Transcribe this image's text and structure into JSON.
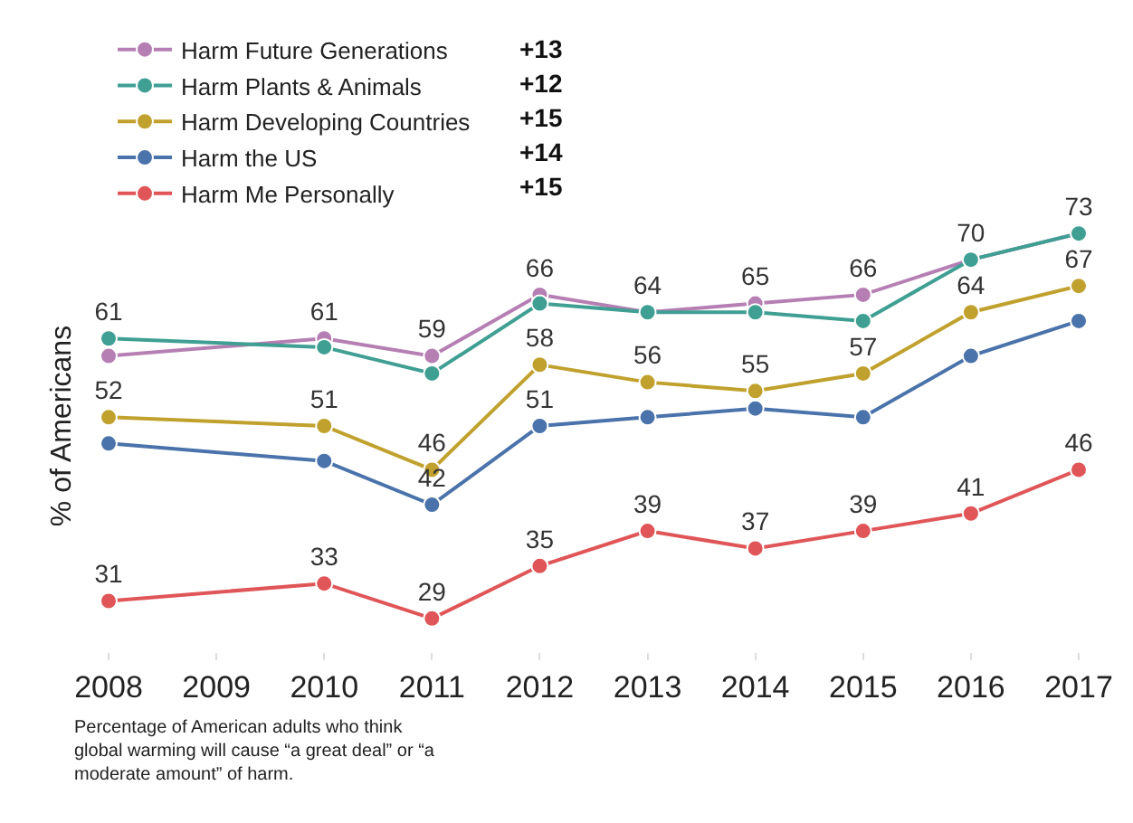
{
  "chart_data": {
    "type": "line",
    "ylabel": "% of Americans",
    "x": [
      2008,
      2010,
      2011,
      2012,
      2013,
      2014,
      2015,
      2016,
      2017
    ],
    "xlim": [
      2008,
      2017
    ],
    "xticks": [
      2008,
      2009,
      2010,
      2011,
      2012,
      2013,
      2014,
      2015,
      2016,
      2017
    ],
    "tick_labels": "x",
    "legend": "top left",
    "marker": "circle",
    "line_style": "solid",
    "series": [
      {
        "name": "Harm Future Generations",
        "color": "#b67fb4",
        "values": [
          59,
          61,
          59,
          66,
          64,
          65,
          66,
          70,
          73
        ],
        "value_labels": [
          null,
          "61",
          "59",
          "66",
          "64",
          "65",
          "66",
          "70",
          "73"
        ]
      },
      {
        "name": "Harm Plants & Animals",
        "color": "#3f9f93",
        "values": [
          61,
          60,
          57,
          65,
          64,
          64,
          63,
          70,
          73
        ],
        "value_labels": [
          "61",
          null,
          null,
          null,
          null,
          null,
          null,
          null,
          null
        ]
      },
      {
        "name": "Harm Developing Countries",
        "color": "#c1a12d",
        "values": [
          52,
          51,
          46,
          58,
          56,
          55,
          57,
          64,
          67
        ],
        "value_labels": [
          "52",
          "51",
          "46",
          "58",
          "56",
          "55",
          "57",
          "64",
          "67"
        ]
      },
      {
        "name": "Harm the US",
        "color": "#4a73ab",
        "values": [
          49,
          47,
          42,
          51,
          52,
          53,
          52,
          59,
          63
        ],
        "value_labels": [
          null,
          null,
          "42",
          "51",
          null,
          null,
          null,
          null,
          null
        ]
      },
      {
        "name": "Harm Me Personally",
        "color": "#e05558",
        "values": [
          31,
          33,
          29,
          35,
          39,
          37,
          39,
          41,
          46
        ],
        "value_labels": [
          "31",
          "33",
          "29",
          "35",
          "39",
          "37",
          "39",
          "41",
          "46"
        ]
      }
    ],
    "annotations": [
      "Percentage of American adults who think\nglobal warming will cause “a great deal” or “a\nmoderate amount” of harm.",
      "+13",
      "+12",
      "+15",
      "+14",
      "+15"
    ]
  }
}
